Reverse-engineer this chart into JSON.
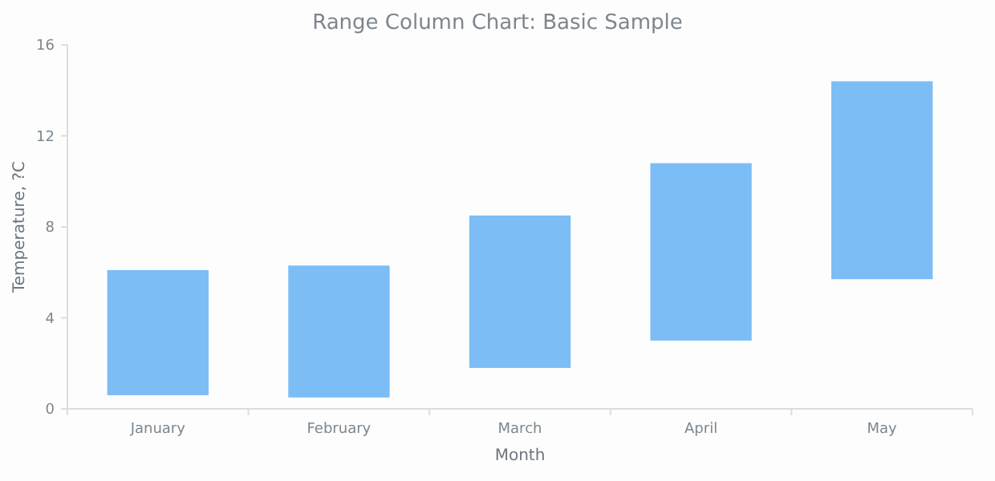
{
  "chart_data": {
    "type": "bar",
    "title": "Range Column Chart: Basic Sample",
    "xlabel": "Month",
    "ylabel": "Temperature, ?C",
    "categories": [
      "January",
      "February",
      "March",
      "April",
      "May"
    ],
    "base": [
      0.6,
      0.5,
      1.8,
      3.0,
      5.7
    ],
    "values": [
      5.5,
      5.8,
      6.7,
      7.8,
      8.7
    ],
    "color": "#7cbdf5",
    "ylim": [
      0,
      16
    ],
    "yticks": [
      0,
      4,
      8,
      12,
      16
    ],
    "grid": false
  }
}
